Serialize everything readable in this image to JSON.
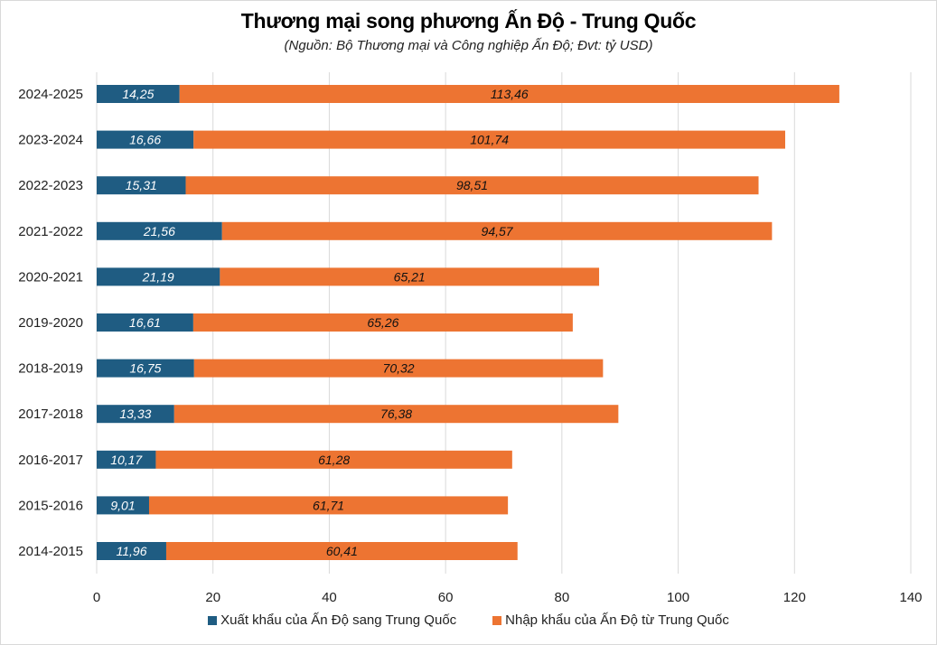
{
  "chart_data": {
    "type": "bar",
    "orientation": "horizontal",
    "stacked": true,
    "title": "Thương mại song phương Ấn Độ - Trung Quốc",
    "subtitle": "(Nguồn: Bộ Thương mại và Công nghiệp Ấn Độ; Đvt: tỷ USD)",
    "categories": [
      "2024-2025",
      "2023-2024",
      "2022-2023",
      "2021-2022",
      "2020-2021",
      "2019-2020",
      "2018-2019",
      "2017-2018",
      "2016-2017",
      "2015-2016",
      "2014-2015"
    ],
    "series": [
      {
        "name": "Xuất khẩu của Ấn Độ sang Trung Quốc",
        "color": "#1f5c82",
        "values": [
          14.25,
          16.66,
          15.31,
          21.56,
          21.19,
          16.61,
          16.75,
          13.33,
          10.17,
          9.01,
          11.96
        ],
        "labels": [
          "14,25",
          "16,66",
          "15,31",
          "21,56",
          "21,19",
          "16,61",
          "16,75",
          "13,33",
          "10,17",
          "9,01",
          "11,96"
        ]
      },
      {
        "name": "Nhập khẩu của Ấn Độ từ Trung Quốc",
        "color": "#ed7432",
        "values": [
          113.46,
          101.74,
          98.51,
          94.57,
          65.21,
          65.26,
          70.32,
          76.38,
          61.28,
          61.71,
          60.41
        ],
        "labels": [
          "113,46",
          "101,74",
          "98,51",
          "94,57",
          "65,21",
          "65,26",
          "70,32",
          "76,38",
          "61,28",
          "61,71",
          "60,41"
        ]
      }
    ],
    "xlim": [
      0,
      140
    ],
    "xticks": [
      0,
      20,
      40,
      60,
      80,
      100,
      120,
      140
    ],
    "grid": true,
    "legend": "bottom"
  }
}
